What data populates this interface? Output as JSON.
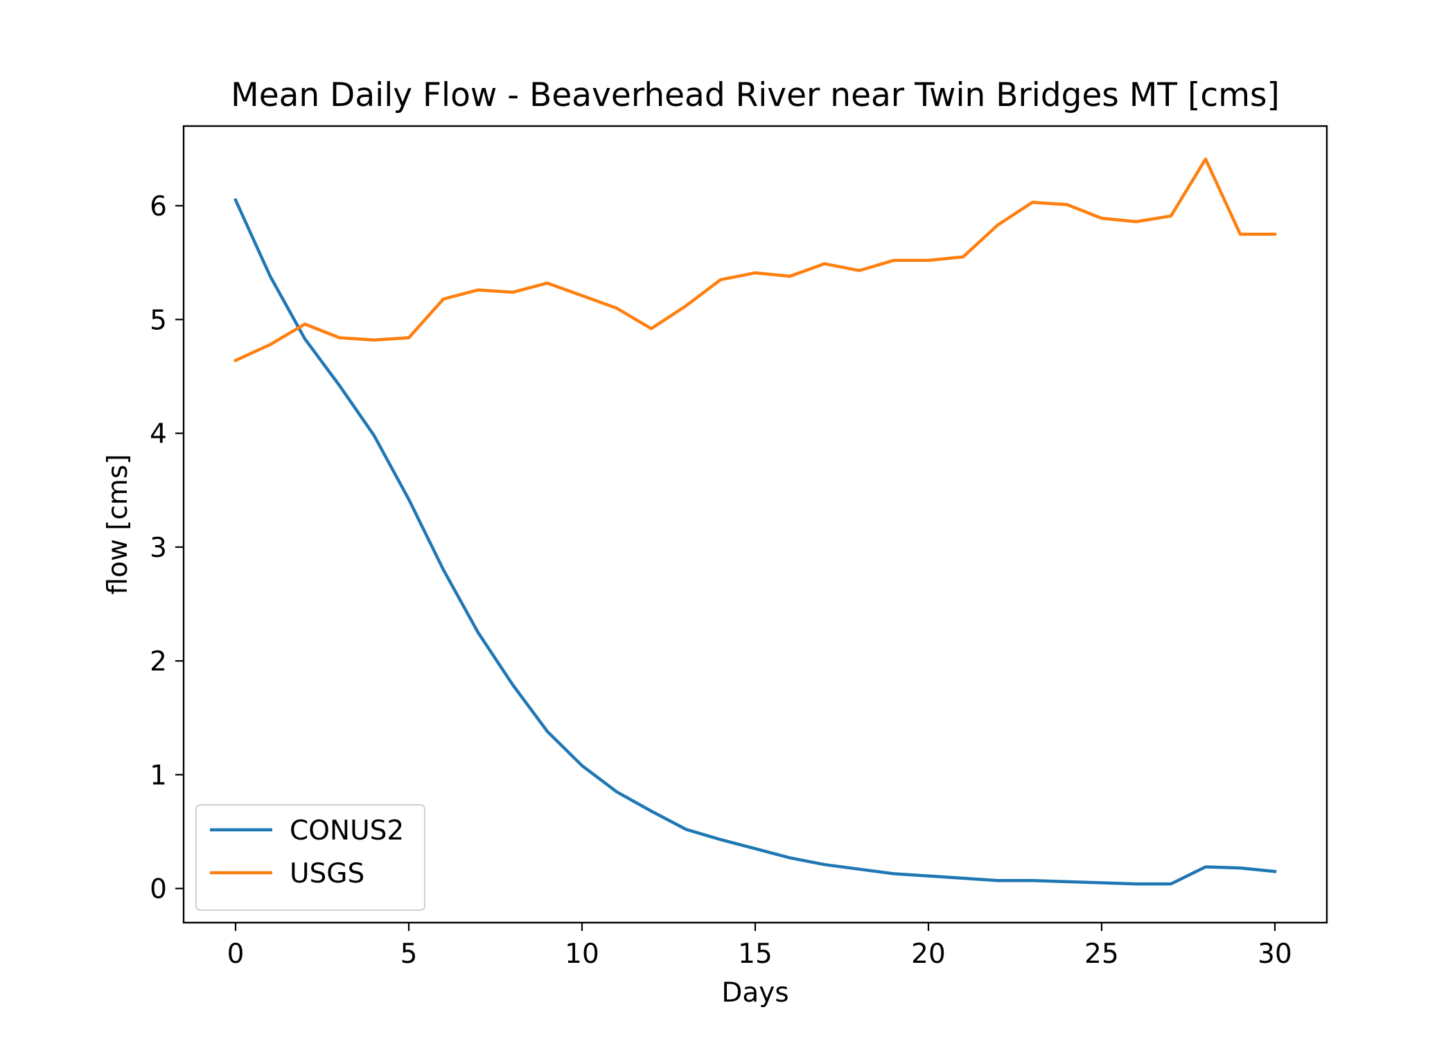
{
  "chart_data": {
    "type": "line",
    "title": "Mean Daily Flow - Beaverhead River near Twin Bridges MT [cms]",
    "xlabel": "Days",
    "ylabel": "flow [cms]",
    "xlim": [
      -1.5,
      31.5
    ],
    "ylim": [
      -0.3,
      6.7
    ],
    "xticks": [
      0,
      5,
      10,
      15,
      20,
      25,
      30
    ],
    "xtick_labels": [
      "0",
      "5",
      "10",
      "15",
      "20",
      "25",
      "30"
    ],
    "yticks": [
      0,
      1,
      2,
      3,
      4,
      5,
      6
    ],
    "ytick_labels": [
      "0",
      "1",
      "2",
      "3",
      "4",
      "5",
      "6"
    ],
    "grid": false,
    "legend_position": "lower-left",
    "x": [
      0,
      1,
      2,
      3,
      4,
      5,
      6,
      7,
      8,
      9,
      10,
      11,
      12,
      13,
      14,
      15,
      16,
      17,
      18,
      19,
      20,
      21,
      22,
      23,
      24,
      25,
      26,
      27,
      28,
      29,
      30
    ],
    "series": [
      {
        "name": "CONUS2",
        "color": "#1f77b4",
        "values": [
          6.05,
          5.38,
          4.83,
          4.42,
          3.98,
          3.42,
          2.8,
          2.25,
          1.79,
          1.38,
          1.08,
          0.85,
          0.68,
          0.52,
          0.43,
          0.35,
          0.27,
          0.21,
          0.17,
          0.13,
          0.11,
          0.09,
          0.07,
          0.07,
          0.06,
          0.05,
          0.04,
          0.04,
          0.19,
          0.18,
          0.15
        ]
      },
      {
        "name": "USGS",
        "color": "#ff7f0e",
        "values": [
          4.64,
          4.78,
          4.96,
          4.84,
          4.82,
          4.84,
          5.18,
          5.26,
          5.24,
          5.32,
          5.21,
          5.1,
          4.92,
          5.12,
          5.35,
          5.41,
          5.38,
          5.49,
          5.43,
          5.52,
          5.52,
          5.55,
          5.83,
          6.03,
          6.01,
          5.89,
          5.86,
          5.91,
          6.41,
          5.75,
          5.75
        ]
      }
    ]
  }
}
